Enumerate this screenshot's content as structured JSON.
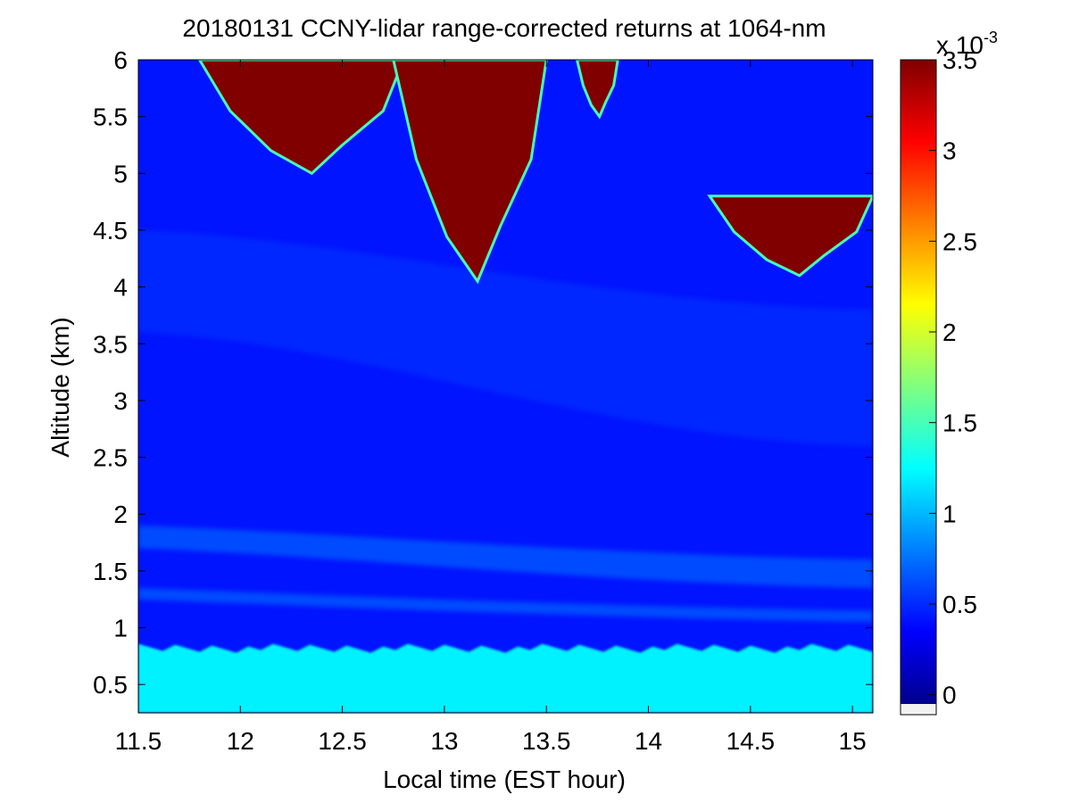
{
  "chart_data": {
    "type": "heatmap",
    "title": "20180131 CCNY-lidar range-corrected returns at 1064-nm",
    "xlabel": "Local time (EST hour)",
    "ylabel": "Altitude (km)",
    "xlim": [
      11.5,
      15.1
    ],
    "ylim": [
      0.25,
      6
    ],
    "xticks": [
      "11.5",
      "12",
      "12.5",
      "13",
      "13.5",
      "14",
      "14.5",
      "15"
    ],
    "yticks": [
      "0.5",
      "1",
      "1.5",
      "2",
      "2.5",
      "3",
      "3.5",
      "4",
      "4.5",
      "5",
      "5.5",
      "6"
    ],
    "colorbar": {
      "colormap": "jet",
      "range": [
        -0.1,
        3.5
      ],
      "multiplier_base": "x 10",
      "multiplier_exponent": "-3",
      "ticks": [
        "0",
        "0.5",
        "1",
        "1.5",
        "2",
        "2.5",
        "3",
        "3.5"
      ]
    },
    "series": [
      {
        "kind": "surface_aerosol_layer",
        "values": {
          "altitude_km": [
            0.25,
            0.85
          ],
          "intensity_e3": 1.2
        }
      },
      {
        "kind": "elevated_aerosol_layer",
        "values": {
          "altitude_km_start": [
            1.7,
            1.9
          ],
          "altitude_km_end": [
            1.35,
            1.6
          ],
          "intensity_e3": 0.7
        }
      },
      {
        "kind": "elevated_aerosol_layer",
        "values": {
          "altitude_km_start": [
            1.25,
            1.35
          ],
          "altitude_km_end": [
            1.05,
            1.15
          ],
          "intensity_e3": 0.7
        }
      },
      {
        "kind": "free_troposphere_layer",
        "values": {
          "altitude_km_start": [
            3.6,
            4.5
          ],
          "altitude_km_end": [
            2.6,
            3.8
          ],
          "intensity_e3": 0.55
        }
      },
      {
        "kind": "cloud",
        "values": {
          "time_hr": [
            11.8,
            12.8
          ],
          "altitude_km": [
            5.0,
            6.0
          ],
          "intensity_e3": 3.5
        }
      },
      {
        "kind": "cloud",
        "values": {
          "time_hr": [
            12.75,
            13.5
          ],
          "altitude_km": [
            4.05,
            6.0
          ],
          "intensity_e3": 3.5
        }
      },
      {
        "kind": "cloud",
        "values": {
          "time_hr": [
            13.65,
            13.85
          ],
          "altitude_km": [
            5.5,
            6.0
          ],
          "intensity_e3": 3.5
        }
      },
      {
        "kind": "cloud",
        "values": {
          "time_hr": [
            14.3,
            15.1
          ],
          "altitude_km": [
            4.1,
            4.8
          ],
          "intensity_e3": 3.5
        }
      }
    ]
  }
}
